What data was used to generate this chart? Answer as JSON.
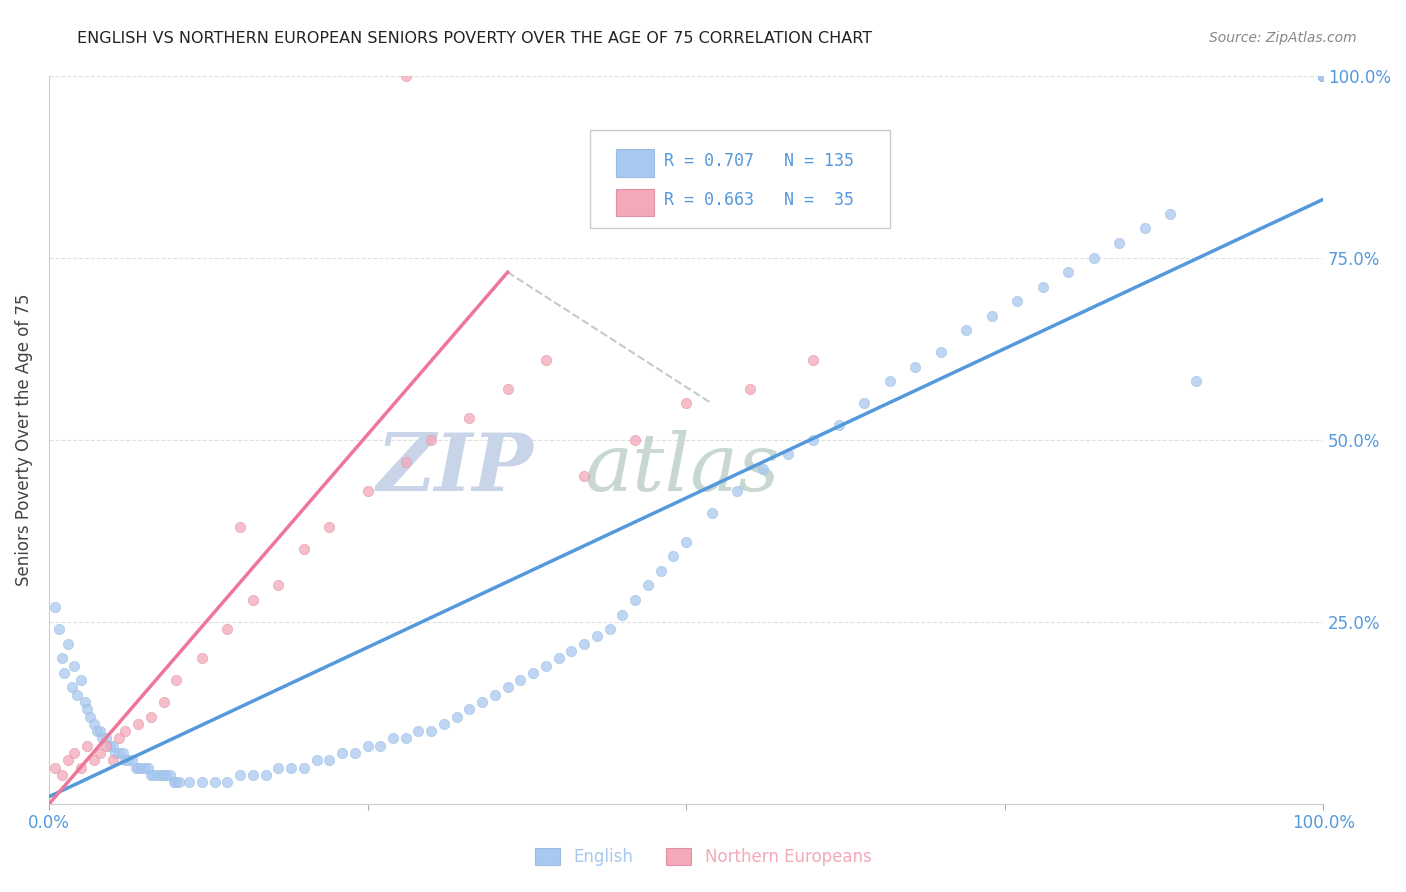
{
  "title": "ENGLISH VS NORTHERN EUROPEAN SENIORS POVERTY OVER THE AGE OF 75 CORRELATION CHART",
  "source": "Source: ZipAtlas.com",
  "ylabel": "Seniors Poverty Over the Age of 75",
  "xlim": [
    0.0,
    1.0
  ],
  "ylim": [
    0.0,
    1.0
  ],
  "legend_r_english": "R = 0.707",
  "legend_n_english": "N = 135",
  "legend_r_northern": "R = 0.663",
  "legend_n_northern": "N =  35",
  "english_color": "#A8C8F0",
  "northern_color": "#F4A8B8",
  "english_line_color": "#5599DD",
  "northern_line_color": "#EE7799",
  "background_color": "#FFFFFF",
  "grid_color": "#DDDDDD",
  "watermark_zip_color": "#C8D4E8",
  "watermark_atlas_color": "#C8D8D0",
  "right_tick_color": "#5599DD",
  "title_color": "#222222",
  "source_color": "#888888",
  "ylabel_color": "#444444",
  "xtick_color": "#5599DD",
  "english_scatter_x": [
    0.005,
    0.008,
    0.01,
    0.012,
    0.015,
    0.018,
    0.02,
    0.022,
    0.025,
    0.028,
    0.03,
    0.032,
    0.035,
    0.038,
    0.04,
    0.042,
    0.045,
    0.048,
    0.05,
    0.052,
    0.055,
    0.058,
    0.06,
    0.062,
    0.065,
    0.068,
    0.07,
    0.072,
    0.075,
    0.078,
    0.08,
    0.082,
    0.085,
    0.088,
    0.09,
    0.092,
    0.095,
    0.098,
    0.1,
    0.102,
    0.11,
    0.12,
    0.13,
    0.14,
    0.15,
    0.16,
    0.17,
    0.18,
    0.19,
    0.2,
    0.21,
    0.22,
    0.23,
    0.24,
    0.25,
    0.26,
    0.27,
    0.28,
    0.29,
    0.3,
    0.31,
    0.32,
    0.33,
    0.34,
    0.35,
    0.36,
    0.37,
    0.38,
    0.39,
    0.4,
    0.41,
    0.42,
    0.43,
    0.44,
    0.45,
    0.46,
    0.47,
    0.48,
    0.49,
    0.5,
    0.52,
    0.54,
    0.56,
    0.58,
    0.6,
    0.62,
    0.64,
    0.66,
    0.68,
    0.7,
    0.72,
    0.74,
    0.76,
    0.78,
    0.8,
    0.82,
    0.84,
    0.86,
    0.88,
    0.9,
    1.0,
    1.0,
    1.0,
    1.0,
    1.0,
    1.0,
    1.0,
    1.0,
    1.0,
    1.0,
    1.0,
    1.0,
    1.0,
    1.0,
    1.0,
    1.0,
    1.0,
    1.0,
    1.0,
    1.0,
    1.0,
    1.0,
    1.0,
    1.0,
    1.0,
    1.0,
    1.0,
    1.0,
    1.0,
    1.0,
    1.0,
    1.0,
    1.0,
    1.0,
    1.0
  ],
  "english_scatter_y": [
    0.27,
    0.24,
    0.2,
    0.18,
    0.22,
    0.16,
    0.19,
    0.15,
    0.17,
    0.14,
    0.13,
    0.12,
    0.11,
    0.1,
    0.1,
    0.09,
    0.09,
    0.08,
    0.08,
    0.07,
    0.07,
    0.07,
    0.06,
    0.06,
    0.06,
    0.05,
    0.05,
    0.05,
    0.05,
    0.05,
    0.04,
    0.04,
    0.04,
    0.04,
    0.04,
    0.04,
    0.04,
    0.03,
    0.03,
    0.03,
    0.03,
    0.03,
    0.03,
    0.03,
    0.04,
    0.04,
    0.04,
    0.05,
    0.05,
    0.05,
    0.06,
    0.06,
    0.07,
    0.07,
    0.08,
    0.08,
    0.09,
    0.09,
    0.1,
    0.1,
    0.11,
    0.12,
    0.13,
    0.14,
    0.15,
    0.16,
    0.17,
    0.18,
    0.19,
    0.2,
    0.21,
    0.22,
    0.23,
    0.24,
    0.26,
    0.28,
    0.3,
    0.32,
    0.34,
    0.36,
    0.4,
    0.43,
    0.46,
    0.48,
    0.5,
    0.52,
    0.55,
    0.58,
    0.6,
    0.62,
    0.65,
    0.67,
    0.69,
    0.71,
    0.73,
    0.75,
    0.77,
    0.79,
    0.81,
    0.58,
    1.0,
    1.0,
    1.0,
    1.0,
    1.0,
    1.0,
    1.0,
    1.0,
    1.0,
    1.0,
    1.0,
    1.0,
    1.0,
    1.0,
    1.0,
    1.0,
    1.0,
    1.0,
    1.0,
    1.0,
    1.0,
    1.0,
    1.0,
    1.0,
    1.0,
    1.0,
    1.0,
    1.0,
    1.0,
    1.0,
    1.0,
    1.0,
    1.0,
    1.0,
    1.0
  ],
  "northern_scatter_x": [
    0.005,
    0.01,
    0.015,
    0.02,
    0.025,
    0.03,
    0.035,
    0.04,
    0.045,
    0.05,
    0.055,
    0.06,
    0.07,
    0.08,
    0.09,
    0.1,
    0.12,
    0.14,
    0.16,
    0.18,
    0.2,
    0.22,
    0.25,
    0.28,
    0.3,
    0.33,
    0.36,
    0.39,
    0.42,
    0.46,
    0.5,
    0.55,
    0.6,
    0.15,
    0.28
  ],
  "northern_scatter_y": [
    0.05,
    0.04,
    0.06,
    0.07,
    0.05,
    0.08,
    0.06,
    0.07,
    0.08,
    0.06,
    0.09,
    0.1,
    0.11,
    0.12,
    0.14,
    0.17,
    0.2,
    0.24,
    0.28,
    0.3,
    0.35,
    0.38,
    0.43,
    0.47,
    0.5,
    0.53,
    0.57,
    0.61,
    0.45,
    0.5,
    0.55,
    0.57,
    0.61,
    0.38,
    1.0
  ],
  "english_line": {
    "x0": 0.0,
    "y0": 0.01,
    "x1": 1.0,
    "y1": 0.83
  },
  "northern_line": {
    "x0": 0.0,
    "y0": 0.0,
    "x1": 0.36,
    "y1": 0.73
  },
  "dashed_line": {
    "x0": 0.36,
    "y0": 0.73,
    "x1": 0.52,
    "y1": 0.55
  }
}
